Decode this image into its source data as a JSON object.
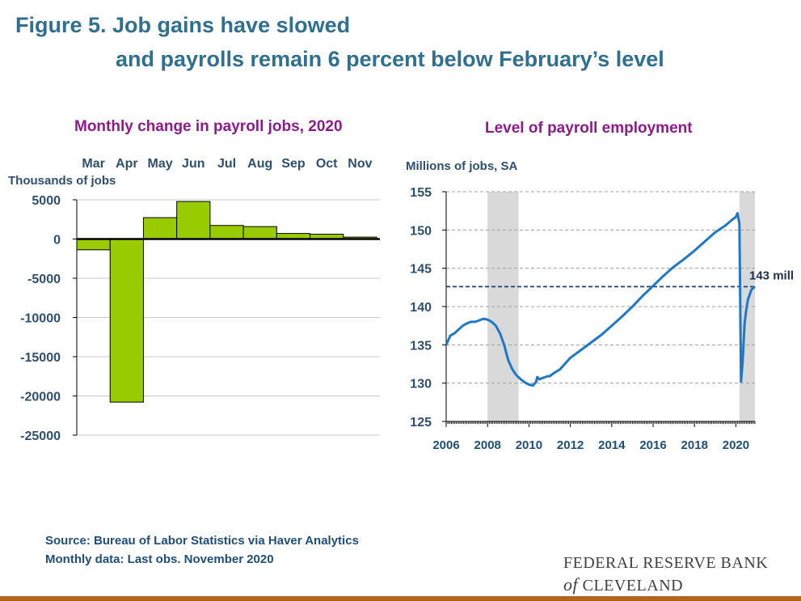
{
  "title": {
    "line1": "Figure 5. Job gains have slowed",
    "line2": "and payrolls remain 6 percent below February’s level"
  },
  "source": {
    "line1": "Source: Bureau of Labor Statistics via Haver Analytics",
    "line2": "Monthly data: Last obs. November 2020"
  },
  "logo": {
    "line1": "FEDERAL RESERVE BANK",
    "line2_prefix": "of",
    "line2": "CLEVELAND"
  },
  "colors": {
    "title": "#2f6f8f",
    "chart_title": "#8e1a8e",
    "bar": "#99cc00",
    "line": "#1f77c8",
    "recession": "#d9d9d9",
    "reference": "#1f3f6f"
  },
  "chart_data": [
    {
      "type": "bar",
      "title": "Monthly change in payroll jobs, 2020",
      "ylabel": "Thousands of jobs",
      "categories": [
        "Mar",
        "Apr",
        "May",
        "Jun",
        "Jul",
        "Aug",
        "Sep",
        "Oct",
        "Nov"
      ],
      "values": [
        -1373,
        -20787,
        2725,
        4781,
        1726,
        1583,
        711,
        610,
        245
      ],
      "ylim": [
        -25000,
        5000
      ],
      "yticks": [
        5000,
        0,
        -5000,
        -10000,
        -15000,
        -20000,
        -25000
      ],
      "ytick_labels": [
        "5000",
        "0",
        "-5000",
        "-10000",
        "-15000",
        "-20000",
        "-25000"
      ],
      "category_axis": "top",
      "grid": true
    },
    {
      "type": "line",
      "title": "Level of payroll employment",
      "ylabel": "Millions  of jobs, SA",
      "xlim": [
        2006,
        2020.92
      ],
      "ylim": [
        125,
        155
      ],
      "xticks": [
        2006,
        2008,
        2010,
        2012,
        2014,
        2016,
        2018,
        2020
      ],
      "xtick_labels": [
        "2006",
        "2008",
        "2010",
        "2012",
        "2014",
        "2016",
        "2018",
        "2020"
      ],
      "yticks": [
        125,
        130,
        135,
        140,
        145,
        150,
        155
      ],
      "ytick_labels": [
        "125",
        "130",
        "135",
        "140",
        "145",
        "150",
        "155"
      ],
      "grid": true,
      "recessions": [
        [
          2008.0,
          2009.5
        ],
        [
          2020.17,
          2020.92
        ]
      ],
      "reference_line": {
        "value": 142.6,
        "label": "143 mill"
      },
      "series": [
        {
          "x": [
            2006.0,
            2006.2,
            2006.4,
            2006.6,
            2006.8,
            2007.0,
            2007.2,
            2007.4,
            2007.6,
            2007.8,
            2008.0,
            2008.2,
            2008.4,
            2008.6,
            2008.8,
            2009.0,
            2009.2,
            2009.4,
            2009.6,
            2009.8,
            2010.0,
            2010.2,
            2010.35,
            2010.4,
            2010.5,
            2010.7,
            2010.9,
            2011.0,
            2011.2,
            2011.5,
            2012.0,
            2012.5,
            2013.0,
            2013.5,
            2014.0,
            2014.5,
            2015.0,
            2015.5,
            2016.0,
            2016.5,
            2017.0,
            2017.5,
            2018.0,
            2018.5,
            2019.0,
            2019.5,
            2019.8,
            2020.0,
            2020.08,
            2020.17,
            2020.25,
            2020.33,
            2020.42,
            2020.5,
            2020.58,
            2020.67,
            2020.75,
            2020.83,
            2020.92
          ],
          "y": [
            135.0,
            136.2,
            136.5,
            137.0,
            137.5,
            137.8,
            138.0,
            138.0,
            138.2,
            138.4,
            138.3,
            138.0,
            137.5,
            136.5,
            135.0,
            133.0,
            131.8,
            131.0,
            130.5,
            130.1,
            129.8,
            129.7,
            130.2,
            130.8,
            130.5,
            130.7,
            130.9,
            130.9,
            131.3,
            131.8,
            133.3,
            134.3,
            135.3,
            136.3,
            137.5,
            138.7,
            140.0,
            141.4,
            142.7,
            144.0,
            145.2,
            146.2,
            147.3,
            148.5,
            149.7,
            150.6,
            151.3,
            151.7,
            152.2,
            150.8,
            130.2,
            133.0,
            137.8,
            139.5,
            140.9,
            141.6,
            142.2,
            142.4,
            142.6
          ]
        }
      ]
    }
  ]
}
